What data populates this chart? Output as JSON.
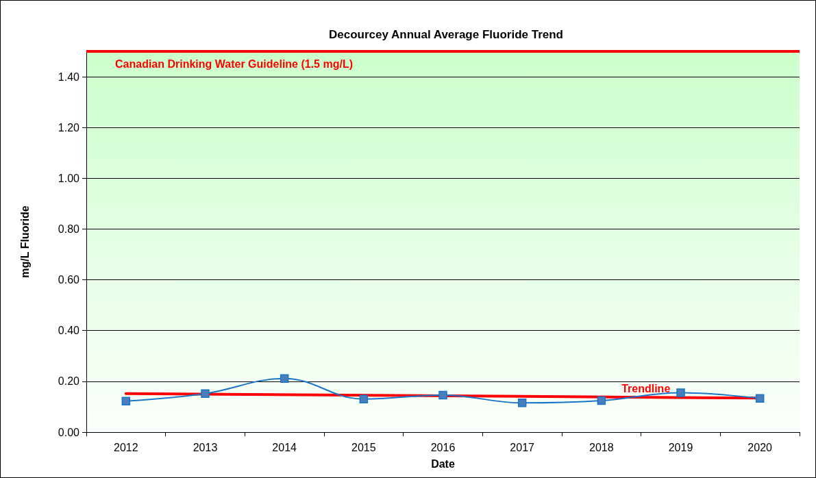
{
  "chart_data": {
    "type": "line",
    "title": "Decourcey Annual Average Fluoride Trend",
    "xlabel": "Date",
    "ylabel": "mg/L Fluoride",
    "categories": [
      "2012",
      "2013",
      "2014",
      "2015",
      "2016",
      "2017",
      "2018",
      "2019",
      "2020"
    ],
    "series": [
      {
        "color": "#1a75c8",
        "values": [
          0.122,
          0.152,
          0.211,
          0.13,
          0.146,
          0.115,
          0.124,
          0.155,
          0.133
        ],
        "marker": "square"
      },
      {
        "name": "Trendline",
        "type": "line",
        "color": "#ff0000",
        "values": [
          0.152,
          null,
          null,
          null,
          null,
          null,
          null,
          null,
          0.134
        ],
        "marker": "none"
      }
    ],
    "ylim": [
      0,
      1.5
    ],
    "yticks": [
      {
        "value": 0,
        "label": "0.00"
      },
      {
        "value": 0.2,
        "label": "0.20"
      },
      {
        "value": 0.4,
        "label": "0.40"
      },
      {
        "value": 0.6,
        "label": "0.60"
      },
      {
        "value": 0.8,
        "label": "0.80"
      },
      {
        "value": 1.0,
        "label": "1.00"
      },
      {
        "value": 1.2,
        "label": "1.20"
      },
      {
        "value": 1.4,
        "label": "1.40"
      }
    ],
    "ref_lines": [
      {
        "axis": "y",
        "value": 1.5,
        "label": "Canadian Drinking Water Guideline (1.5 mg/L)",
        "color": "#ff0000"
      }
    ],
    "grid": "y",
    "legend": false
  }
}
